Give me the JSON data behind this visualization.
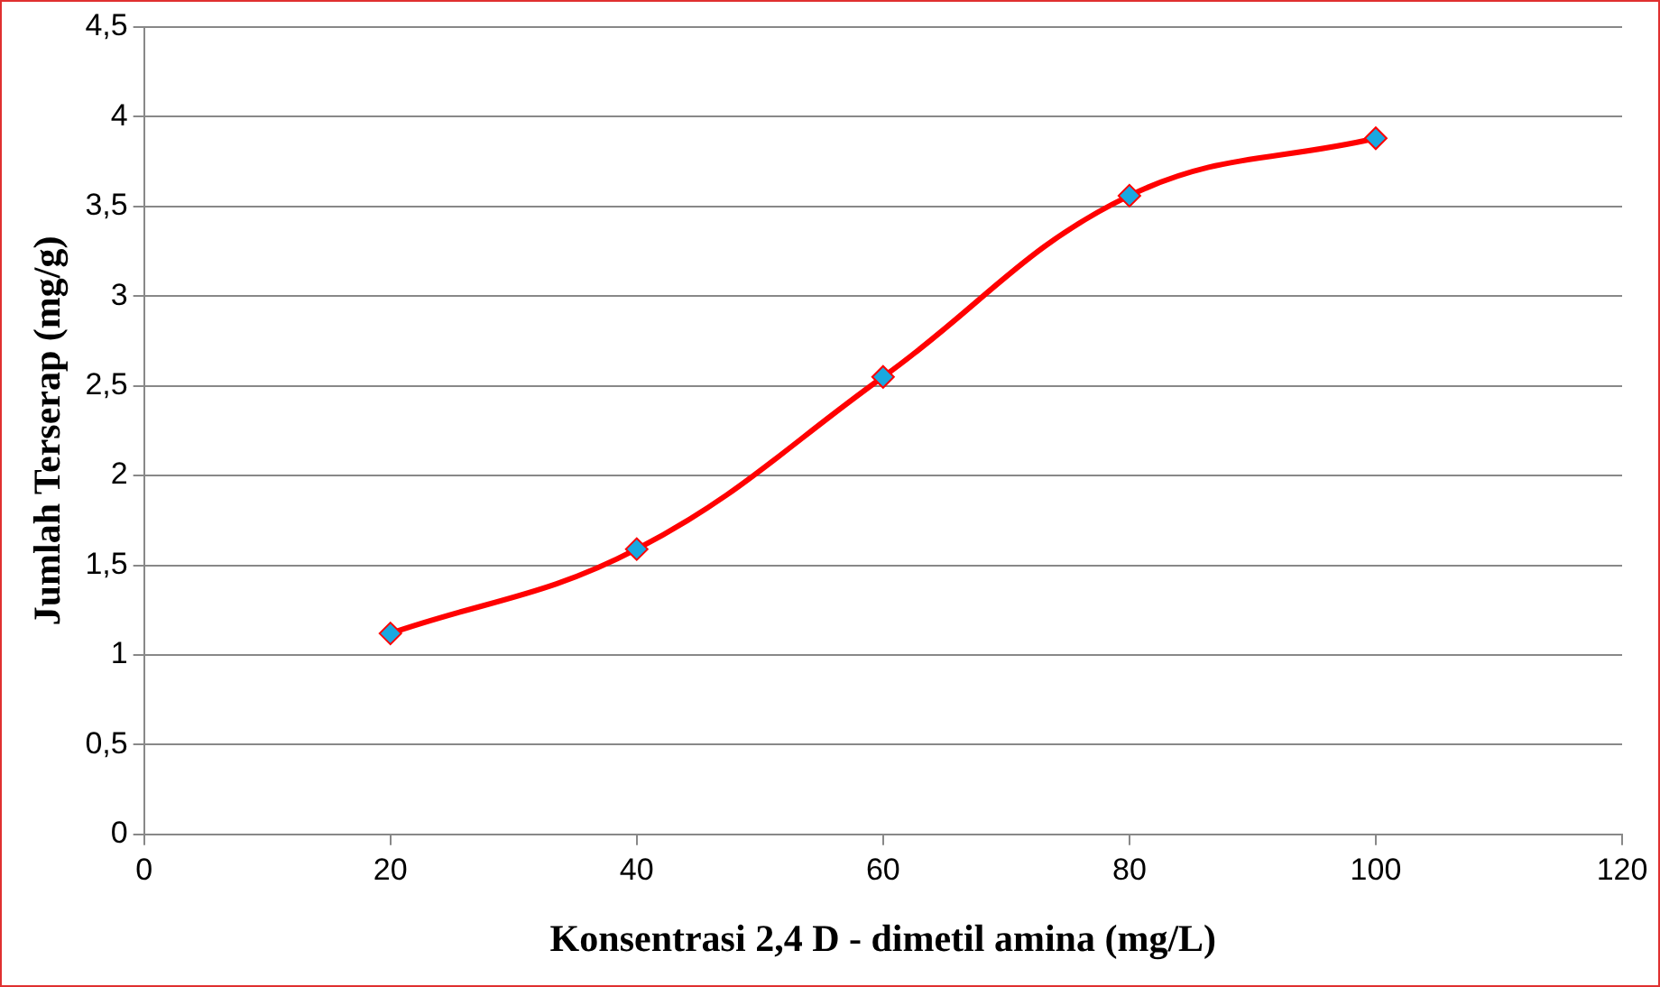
{
  "chart_data": {
    "type": "line",
    "xlabel": "Konsentrasi 2,4 D - dimetil amina (mg/L)",
    "ylabel": "Jumlah Terserap (mg/g)",
    "x": [
      20,
      40,
      60,
      80,
      100
    ],
    "series": [
      {
        "color": "#ff0000",
        "values": [
          1.12,
          1.59,
          2.55,
          3.56,
          3.88
        ]
      }
    ],
    "xlim": [
      0,
      120
    ],
    "xticks": [
      0,
      20,
      40,
      60,
      80,
      100,
      120
    ],
    "ylim": [
      0,
      4.5
    ],
    "yticks": [
      0,
      {
        "value": 0.5,
        "label": "0,5"
      },
      1,
      {
        "value": 1.5,
        "label": "1,5"
      },
      2,
      {
        "value": 2.5,
        "label": "2,5"
      },
      3,
      {
        "value": 3.5,
        "label": "3,5"
      },
      4,
      {
        "value": 4.5,
        "label": "4,5"
      }
    ],
    "grid": "y",
    "legend": false,
    "marker": "diamond",
    "line_style": "solid"
  }
}
